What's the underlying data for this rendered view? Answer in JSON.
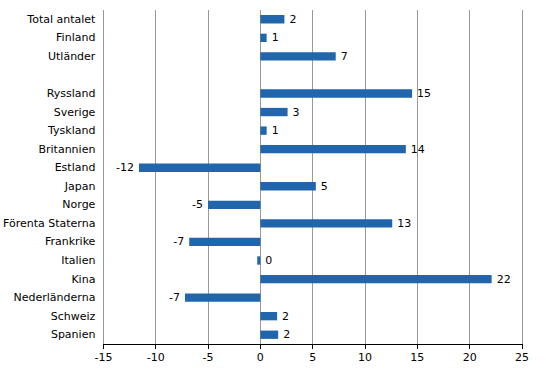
{
  "chart_data": {
    "type": "bar",
    "orientation": "horizontal",
    "categories": [
      "Total antalet",
      "Finland",
      "Utländer",
      null,
      "Ryssland",
      "Sverige",
      "Tyskland",
      "Britannien",
      "Estland",
      "Japan",
      "Norge",
      "Förenta Staterna",
      "Frankrike",
      "Italien",
      "Kina",
      "Nederländerna",
      "Schweiz",
      "Spanien"
    ],
    "values": [
      2.3,
      0.6,
      7.2,
      null,
      14.5,
      2.6,
      0.6,
      13.9,
      -11.6,
      5.3,
      -5,
      12.6,
      -6.8,
      -0.3,
      22.1,
      -7.2,
      1.6,
      1.7
    ],
    "value_labels": [
      "2",
      "1",
      "7",
      null,
      "15",
      "3",
      "1",
      "14",
      "-12",
      "5",
      "-5",
      "13",
      "-7",
      "0",
      "22",
      "-7",
      "2",
      "2"
    ],
    "color": "#2166ac",
    "xlim": [
      -15,
      25
    ],
    "xticks": [
      -15,
      -10,
      -5,
      0,
      5,
      10,
      15,
      20,
      25
    ],
    "grid": true,
    "data_labels": true
  }
}
